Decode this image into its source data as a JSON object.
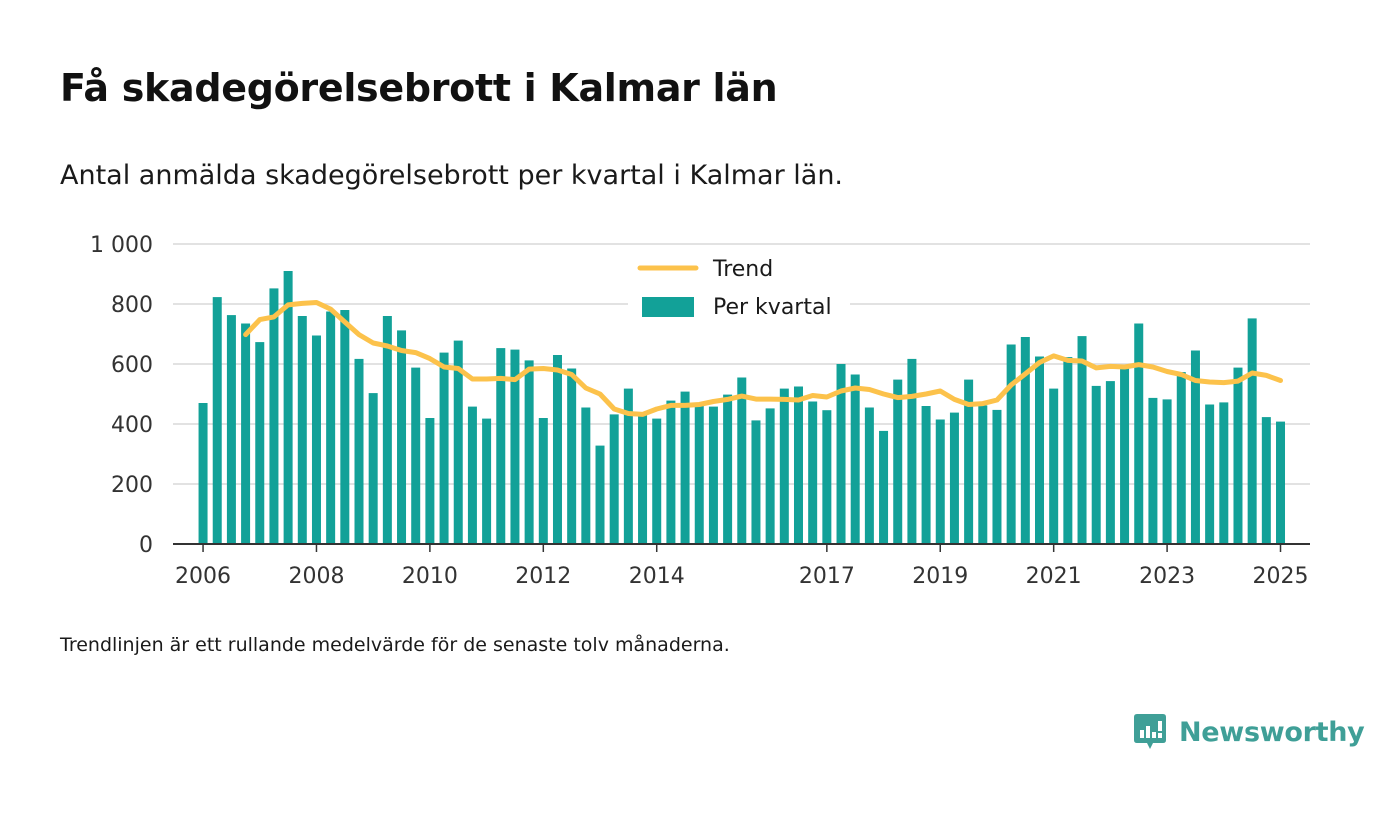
{
  "header": {
    "title": "Få skadegörelsebrott i Kalmar län",
    "subtitle": "Antal anmälda skadegörelsebrott per kvartal i Kalmar län."
  },
  "footnote": "Trendlinjen är ett rullande medelvärde för de senaste tolv månaderna.",
  "brand": {
    "name": "Newsworthy",
    "icon": "newsworthy-logo-icon",
    "color": "#3f9f97"
  },
  "colors": {
    "bars": "#12a198",
    "trend": "#fcc24b",
    "grid": "#d9d9d9",
    "axis": "#333333"
  },
  "chart_data": {
    "type": "bar",
    "title": "Få skadegörelsebrott i Kalmar län",
    "subtitle": "Antal anmälda skadegörelsebrott per kvartal i Kalmar län.",
    "xlabel": "",
    "ylabel": "",
    "ylim": [
      0,
      1000
    ],
    "yticks": [
      0,
      200,
      400,
      600,
      800,
      1000
    ],
    "ytick_labels": [
      "0",
      "200",
      "400",
      "600",
      "800",
      "1 000"
    ],
    "xlim": [
      2005.47,
      2025.52
    ],
    "xticks": [
      2006,
      2008,
      2010,
      2012,
      2014,
      2017,
      2019,
      2021,
      2023,
      2025
    ],
    "xtick_labels": [
      "2006",
      "2008",
      "2010",
      "2012",
      "2014",
      "2017",
      "2019",
      "2021",
      "2023",
      "2025"
    ],
    "grid": true,
    "legend": {
      "placement": "top-center",
      "entries": [
        "Trend",
        "Per kvartal"
      ]
    },
    "x": [
      2006.0,
      2006.25,
      2006.5,
      2006.75,
      2007.0,
      2007.25,
      2007.5,
      2007.75,
      2008.0,
      2008.25,
      2008.5,
      2008.75,
      2009.0,
      2009.25,
      2009.5,
      2009.75,
      2010.0,
      2010.25,
      2010.5,
      2010.75,
      2011.0,
      2011.25,
      2011.5,
      2011.75,
      2012.0,
      2012.25,
      2012.5,
      2012.75,
      2013.0,
      2013.25,
      2013.5,
      2013.75,
      2014.0,
      2014.25,
      2014.5,
      2014.75,
      2015.0,
      2015.25,
      2015.5,
      2015.75,
      2016.0,
      2016.25,
      2016.5,
      2016.75,
      2017.0,
      2017.25,
      2017.5,
      2017.75,
      2018.0,
      2018.25,
      2018.5,
      2018.75,
      2019.0,
      2019.25,
      2019.5,
      2019.75,
      2020.0,
      2020.25,
      2020.5,
      2020.75,
      2021.0,
      2021.25,
      2021.5,
      2021.75,
      2022.0,
      2022.25,
      2022.5,
      2022.75,
      2023.0,
      2023.25,
      2023.5,
      2023.75,
      2024.0,
      2024.25,
      2024.5,
      2024.75,
      2025.0
    ],
    "series": [
      {
        "name": "Per kvartal",
        "type": "bar",
        "values": [
          470,
          823,
          763,
          735,
          673,
          852,
          910,
          760,
          695,
          775,
          780,
          617,
          503,
          760,
          712,
          588,
          420,
          638,
          678,
          458,
          418,
          653,
          648,
          612,
          420,
          630,
          585,
          455,
          328,
          432,
          518,
          432,
          418,
          478,
          508,
          462,
          458,
          498,
          555,
          412,
          452,
          518,
          525,
          475,
          446,
          600,
          565,
          455,
          377,
          548,
          617,
          460,
          415,
          438,
          548,
          462,
          447,
          665,
          690,
          625,
          518,
          623,
          693,
          527,
          543,
          592,
          735,
          487,
          482,
          573,
          645,
          465,
          472,
          588,
          752,
          423,
          408
        ]
      },
      {
        "name": "Trend",
        "type": "line",
        "values": [
          null,
          null,
          null,
          698,
          748,
          757,
          797,
          802,
          805,
          783,
          740,
          698,
          670,
          660,
          645,
          638,
          618,
          590,
          585,
          550,
          550,
          552,
          548,
          583,
          585,
          580,
          565,
          520,
          500,
          450,
          435,
          432,
          450,
          462,
          462,
          465,
          475,
          482,
          493,
          483,
          483,
          482,
          480,
          495,
          490,
          510,
          520,
          515,
          500,
          488,
          492,
          500,
          510,
          482,
          465,
          468,
          480,
          530,
          567,
          605,
          627,
          612,
          610,
          587,
          592,
          590,
          598,
          590,
          575,
          565,
          545,
          540,
          538,
          543,
          570,
          562,
          545
        ]
      }
    ]
  }
}
